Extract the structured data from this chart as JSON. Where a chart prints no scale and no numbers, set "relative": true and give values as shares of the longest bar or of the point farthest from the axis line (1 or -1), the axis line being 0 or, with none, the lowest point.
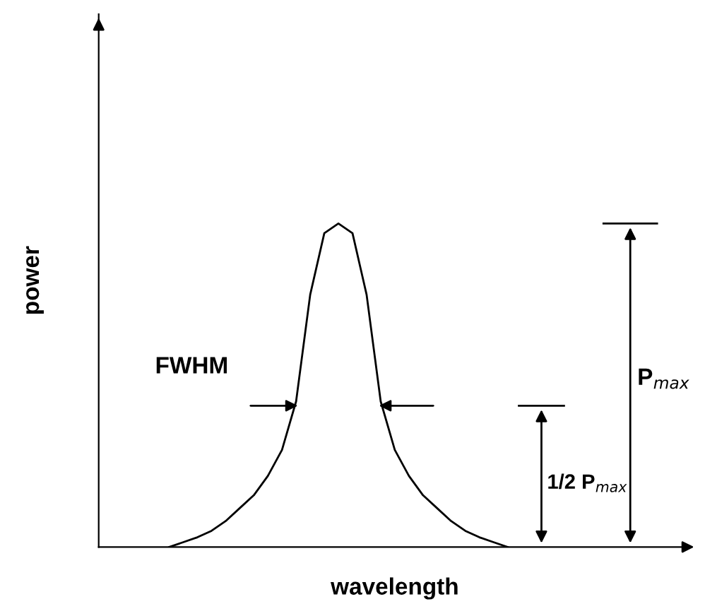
{
  "chart_data": {
    "type": "line",
    "relative": true,
    "xlabel": "wavelength",
    "ylabel": "power",
    "categories": [
      null,
      null,
      null,
      null,
      null,
      null,
      null,
      null,
      null,
      null,
      null,
      null,
      null,
      null,
      null,
      null,
      null,
      null,
      null,
      null,
      null,
      null,
      null,
      null,
      null,
      null,
      null,
      null,
      null,
      null,
      null,
      null,
      null,
      null,
      null,
      null,
      null,
      null,
      null,
      null,
      null,
      null,
      null
    ],
    "annotations": [
      "FWHM",
      "1/2 P$_{max}$",
      "P$_{max}$"
    ],
    "series": [
      {
        "color": "#000000",
        "values": [
          null,
          null,
          null,
          null,
          null,
          0.0,
          0.015,
          0.03,
          0.05,
          0.08,
          0.12,
          0.16,
          0.22,
          0.3,
          0.45,
          0.78,
          0.97,
          1.0,
          0.97,
          0.78,
          0.45,
          0.3,
          0.22,
          0.16,
          0.12,
          0.08,
          0.05,
          0.03,
          0.015,
          0.0,
          null,
          null,
          null,
          null,
          null,
          null,
          null,
          null,
          null,
          null,
          null,
          null,
          null
        ]
      }
    ]
  }
}
